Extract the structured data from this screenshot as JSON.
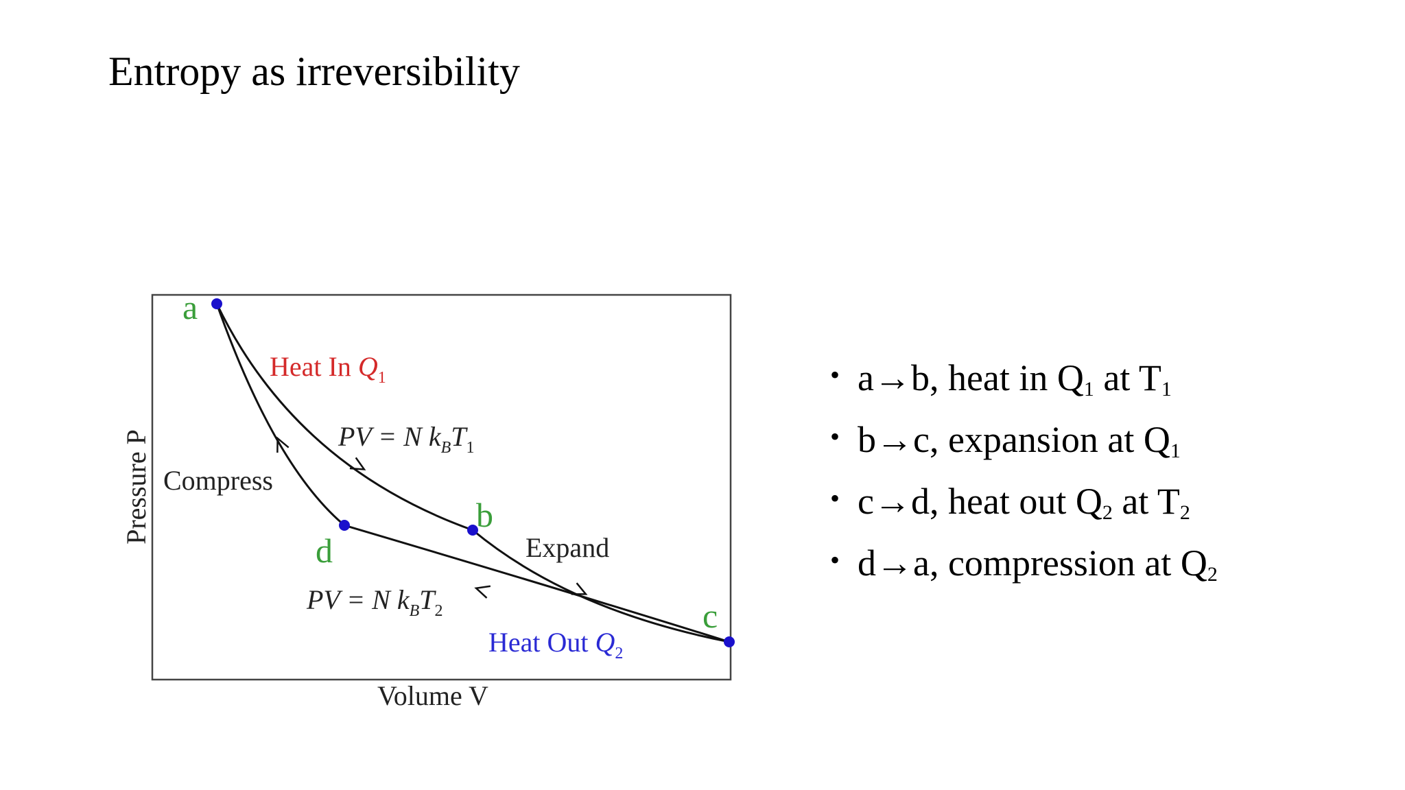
{
  "slide": {
    "title": "Entropy as irreversibility"
  },
  "diagram": {
    "axis_labels": {
      "x": "Volume V",
      "y": "Pressure P"
    },
    "points": [
      {
        "label": "a",
        "color": "#1a10cc",
        "label_color": "#3a9e3a"
      },
      {
        "label": "b",
        "color": "#1a10cc",
        "label_color": "#3a9e3a"
      },
      {
        "label": "c",
        "color": "#1a10cc",
        "label_color": "#3a9e3a"
      },
      {
        "label": "d",
        "color": "#1a10cc",
        "label_color": "#3a9e3a"
      }
    ],
    "annotations": {
      "heat_in": {
        "text": "Heat In ",
        "var": "Q",
        "sub": "1",
        "color": "#d42a2a"
      },
      "heat_out": {
        "text": "Heat Out ",
        "var": "Q",
        "sub": "2",
        "color": "#2a2ad4"
      },
      "isotherm_1": {
        "lhs": "PV = N k",
        "k_sub": "B",
        "t": "T",
        "t_sub": "1"
      },
      "isotherm_2": {
        "lhs": "PV = N k",
        "k_sub": "B",
        "t": "T",
        "t_sub": "2"
      },
      "compress": "Compress",
      "expand": "Expand"
    }
  },
  "bullets": [
    {
      "parts": [
        {
          "t": "a→b, heat in Q"
        },
        {
          "sub": "1"
        },
        {
          "t": " at T"
        },
        {
          "sub": "1"
        }
      ]
    },
    {
      "parts": [
        {
          "t": "b→c, expansion at Q"
        },
        {
          "sub": "1"
        }
      ]
    },
    {
      "parts": [
        {
          "t": "c→d, heat out Q"
        },
        {
          "sub": "2"
        },
        {
          "t": " at T"
        },
        {
          "sub": "2"
        }
      ]
    },
    {
      "parts": [
        {
          "t": "d→a, compression at Q"
        },
        {
          "sub": "2"
        }
      ]
    }
  ]
}
